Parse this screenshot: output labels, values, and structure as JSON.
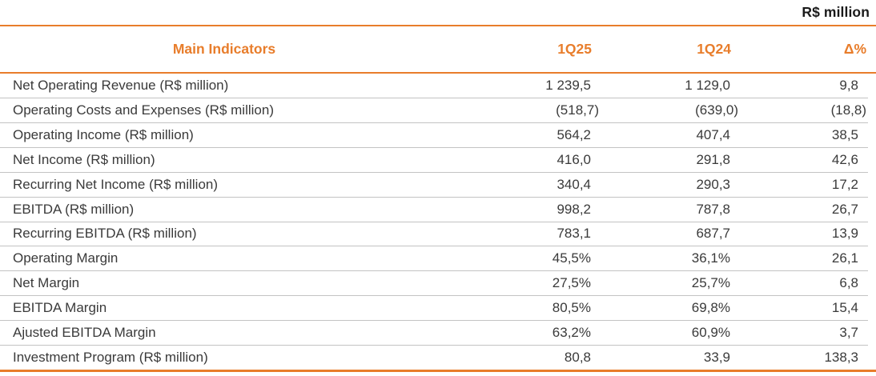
{
  "page": {
    "unit_label": "R$ million"
  },
  "table": {
    "header": {
      "title": "Main Indicators",
      "q1_25": "1Q25",
      "q1_24": "1Q24",
      "delta": "Δ%"
    },
    "rows": [
      {
        "label": "Net Operating Revenue (R$ million)",
        "q1_25": "1 239,5",
        "q1_24": "1 129,0",
        "delta": "9,8"
      },
      {
        "label": "Operating Costs and Expenses (R$ million)",
        "q1_25": "(518,7)",
        "q1_24": "(639,0)",
        "delta": "(18,8)"
      },
      {
        "label": "Operating Income (R$ million)",
        "q1_25": "564,2",
        "q1_24": "407,4",
        "delta": "38,5"
      },
      {
        "label": "Net Income (R$ million)",
        "q1_25": "416,0",
        "q1_24": "291,8",
        "delta": "42,6"
      },
      {
        "label": "Recurring Net Income (R$ million)",
        "q1_25": "340,4",
        "q1_24": "290,3",
        "delta": "17,2"
      },
      {
        "label": "EBITDA (R$ million)",
        "q1_25": "998,2",
        "q1_24": "787,8",
        "delta": "26,7"
      },
      {
        "label": "Recurring EBITDA (R$ million)",
        "q1_25": "783,1",
        "q1_24": "687,7",
        "delta": "13,9"
      },
      {
        "label": "Operating Margin",
        "q1_25": "45,5%",
        "q1_24": "36,1%",
        "delta": "26,1"
      },
      {
        "label": "Net Margin",
        "q1_25": "27,5%",
        "q1_24": "25,7%",
        "delta": "6,8"
      },
      {
        "label": "EBITDA Margin",
        "q1_25": "80,5%",
        "q1_24": "69,8%",
        "delta": "15,4"
      },
      {
        "label": "Ajusted EBITDA Margin",
        "q1_25": "63,2%",
        "q1_24": "60,9%",
        "delta": "3,7"
      },
      {
        "label": "Investment Program (R$ million)",
        "q1_25": "80,8",
        "q1_24": "33,9",
        "delta": "138,3"
      }
    ]
  },
  "colors": {
    "accent": "#E87D2B",
    "separator": "#C3C3C3",
    "text": "#3A3A3A",
    "heading_text": "#1A1A1A"
  }
}
